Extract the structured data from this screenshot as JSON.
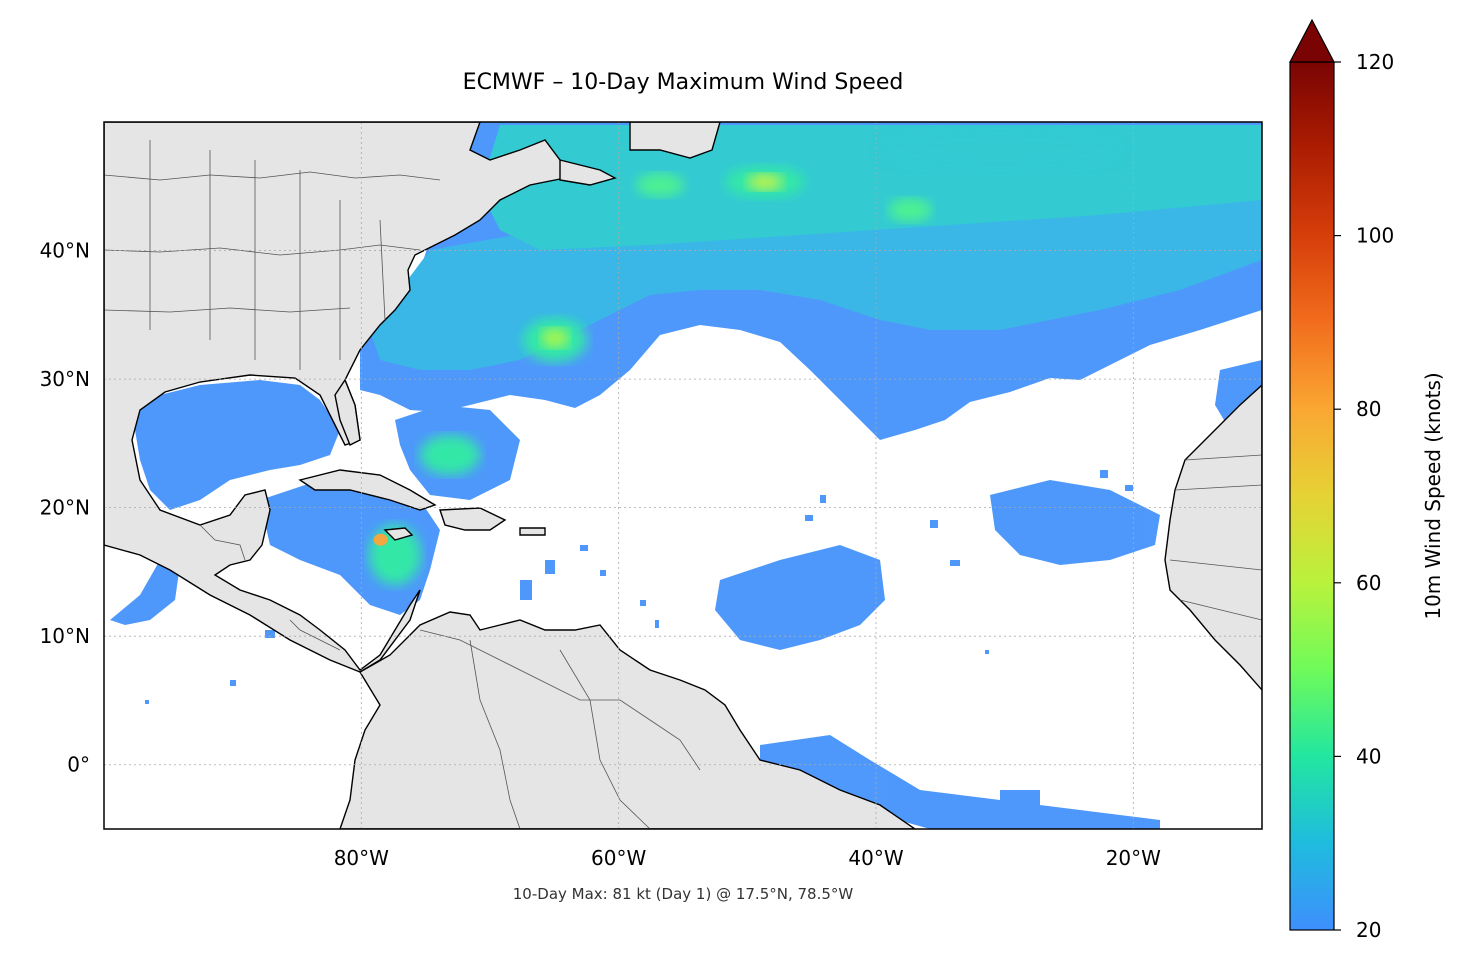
{
  "title": "ECMWF – 10-Day Maximum Wind Speed",
  "footnote": "10-Day Max: 81 kt (Day 1) @ 17.5°N, 78.5°W",
  "map": {
    "extent": {
      "lon_min": -100,
      "lon_max": -10,
      "lat_min": -5,
      "lat_max": 50
    },
    "lat_ticks": [
      {
        "value": 40,
        "label": "40°N"
      },
      {
        "value": 30,
        "label": "30°N"
      },
      {
        "value": 20,
        "label": "20°N"
      },
      {
        "value": 10,
        "label": "10°N"
      },
      {
        "value": 0,
        "label": "0°"
      }
    ],
    "lon_ticks": [
      {
        "value": -80,
        "label": "80°W"
      },
      {
        "value": -60,
        "label": "60°W"
      },
      {
        "value": -40,
        "label": "40°W"
      },
      {
        "value": -20,
        "label": "20°W"
      }
    ],
    "land_color": "#e5e5e5",
    "ocean_color": "#ffffff",
    "gridlines": true,
    "max_marker": {
      "lat": 17.5,
      "lon": -78.5,
      "value_kt": 81,
      "day": 1
    }
  },
  "colorbar": {
    "label": "10m Wind Speed (knots)",
    "min": 20,
    "max": 120,
    "extend": "max",
    "colormap": "turbo",
    "ticks": [
      {
        "value": 20,
        "label": "20"
      },
      {
        "value": 40,
        "label": "40"
      },
      {
        "value": 60,
        "label": "60"
      },
      {
        "value": 80,
        "label": "80"
      },
      {
        "value": 100,
        "label": "100"
      },
      {
        "value": 120,
        "label": "120"
      }
    ]
  }
}
